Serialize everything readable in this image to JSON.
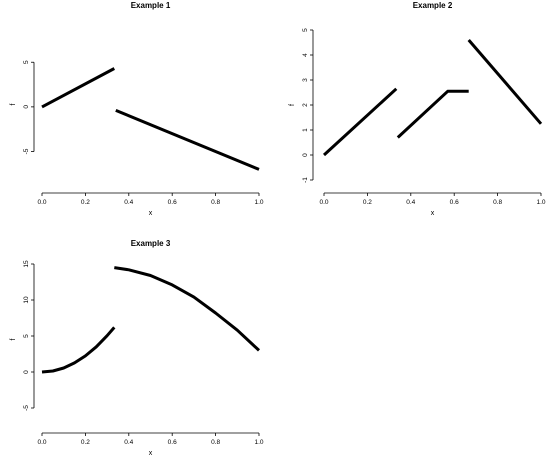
{
  "chart_data": [
    {
      "type": "line",
      "title": "Example 1",
      "xlabel": "x",
      "ylabel": "f",
      "xlim": [
        0,
        1
      ],
      "ylim": [
        -8,
        8.5
      ],
      "xticks": [
        "0.0",
        "0.2",
        "0.4",
        "0.6",
        "0.8",
        "1.0"
      ],
      "yticks": [
        "-5",
        "0",
        "5"
      ],
      "grid": false,
      "legend": "none",
      "series": [
        {
          "x": [
            0,
            0.333
          ],
          "y": [
            0,
            4.3
          ]
        },
        {
          "x": [
            0.34,
            1.0
          ],
          "y": [
            -0.4,
            -7.0
          ]
        }
      ]
    },
    {
      "type": "line",
      "title": "Example 2",
      "xlabel": "x",
      "ylabel": "f",
      "xlim": [
        0,
        1
      ],
      "ylim": [
        -1.1,
        5.1
      ],
      "xticks": [
        "0.0",
        "0.2",
        "0.4",
        "0.6",
        "0.8",
        "1.0"
      ],
      "yticks": [
        "-1",
        "0",
        "1",
        "2",
        "3",
        "4",
        "5"
      ],
      "grid": false,
      "legend": "none",
      "series": [
        {
          "x": [
            0,
            0.333
          ],
          "y": [
            0,
            2.65
          ]
        },
        {
          "x": [
            0.34,
            0.57,
            0.667
          ],
          "y": [
            0.7,
            2.55,
            2.55
          ]
        },
        {
          "x": [
            0.667,
            1.0
          ],
          "y": [
            4.6,
            1.25
          ]
        }
      ]
    },
    {
      "type": "line",
      "title": "Example 3",
      "xlabel": "x",
      "ylabel": "f",
      "xlim": [
        0,
        1
      ],
      "ylim": [
        -7,
        16
      ],
      "xticks": [
        "0.0",
        "0.2",
        "0.4",
        "0.6",
        "0.8",
        "1.0"
      ],
      "yticks": [
        "-5",
        "0",
        "5",
        "10",
        "15"
      ],
      "grid": false,
      "legend": "none",
      "series": [
        {
          "x": [
            0,
            0.05,
            0.1,
            0.15,
            0.2,
            0.25,
            0.3,
            0.333
          ],
          "y": [
            0,
            0.14,
            0.56,
            1.26,
            2.24,
            3.5,
            5.04,
            6.2
          ]
        },
        {
          "x": [
            0.333,
            0.4,
            0.5,
            0.6,
            0.7,
            0.8,
            0.9,
            1.0
          ],
          "y": [
            14.5,
            14.2,
            13.4,
            12.1,
            10.4,
            8.2,
            5.8,
            3.0
          ]
        }
      ]
    }
  ]
}
